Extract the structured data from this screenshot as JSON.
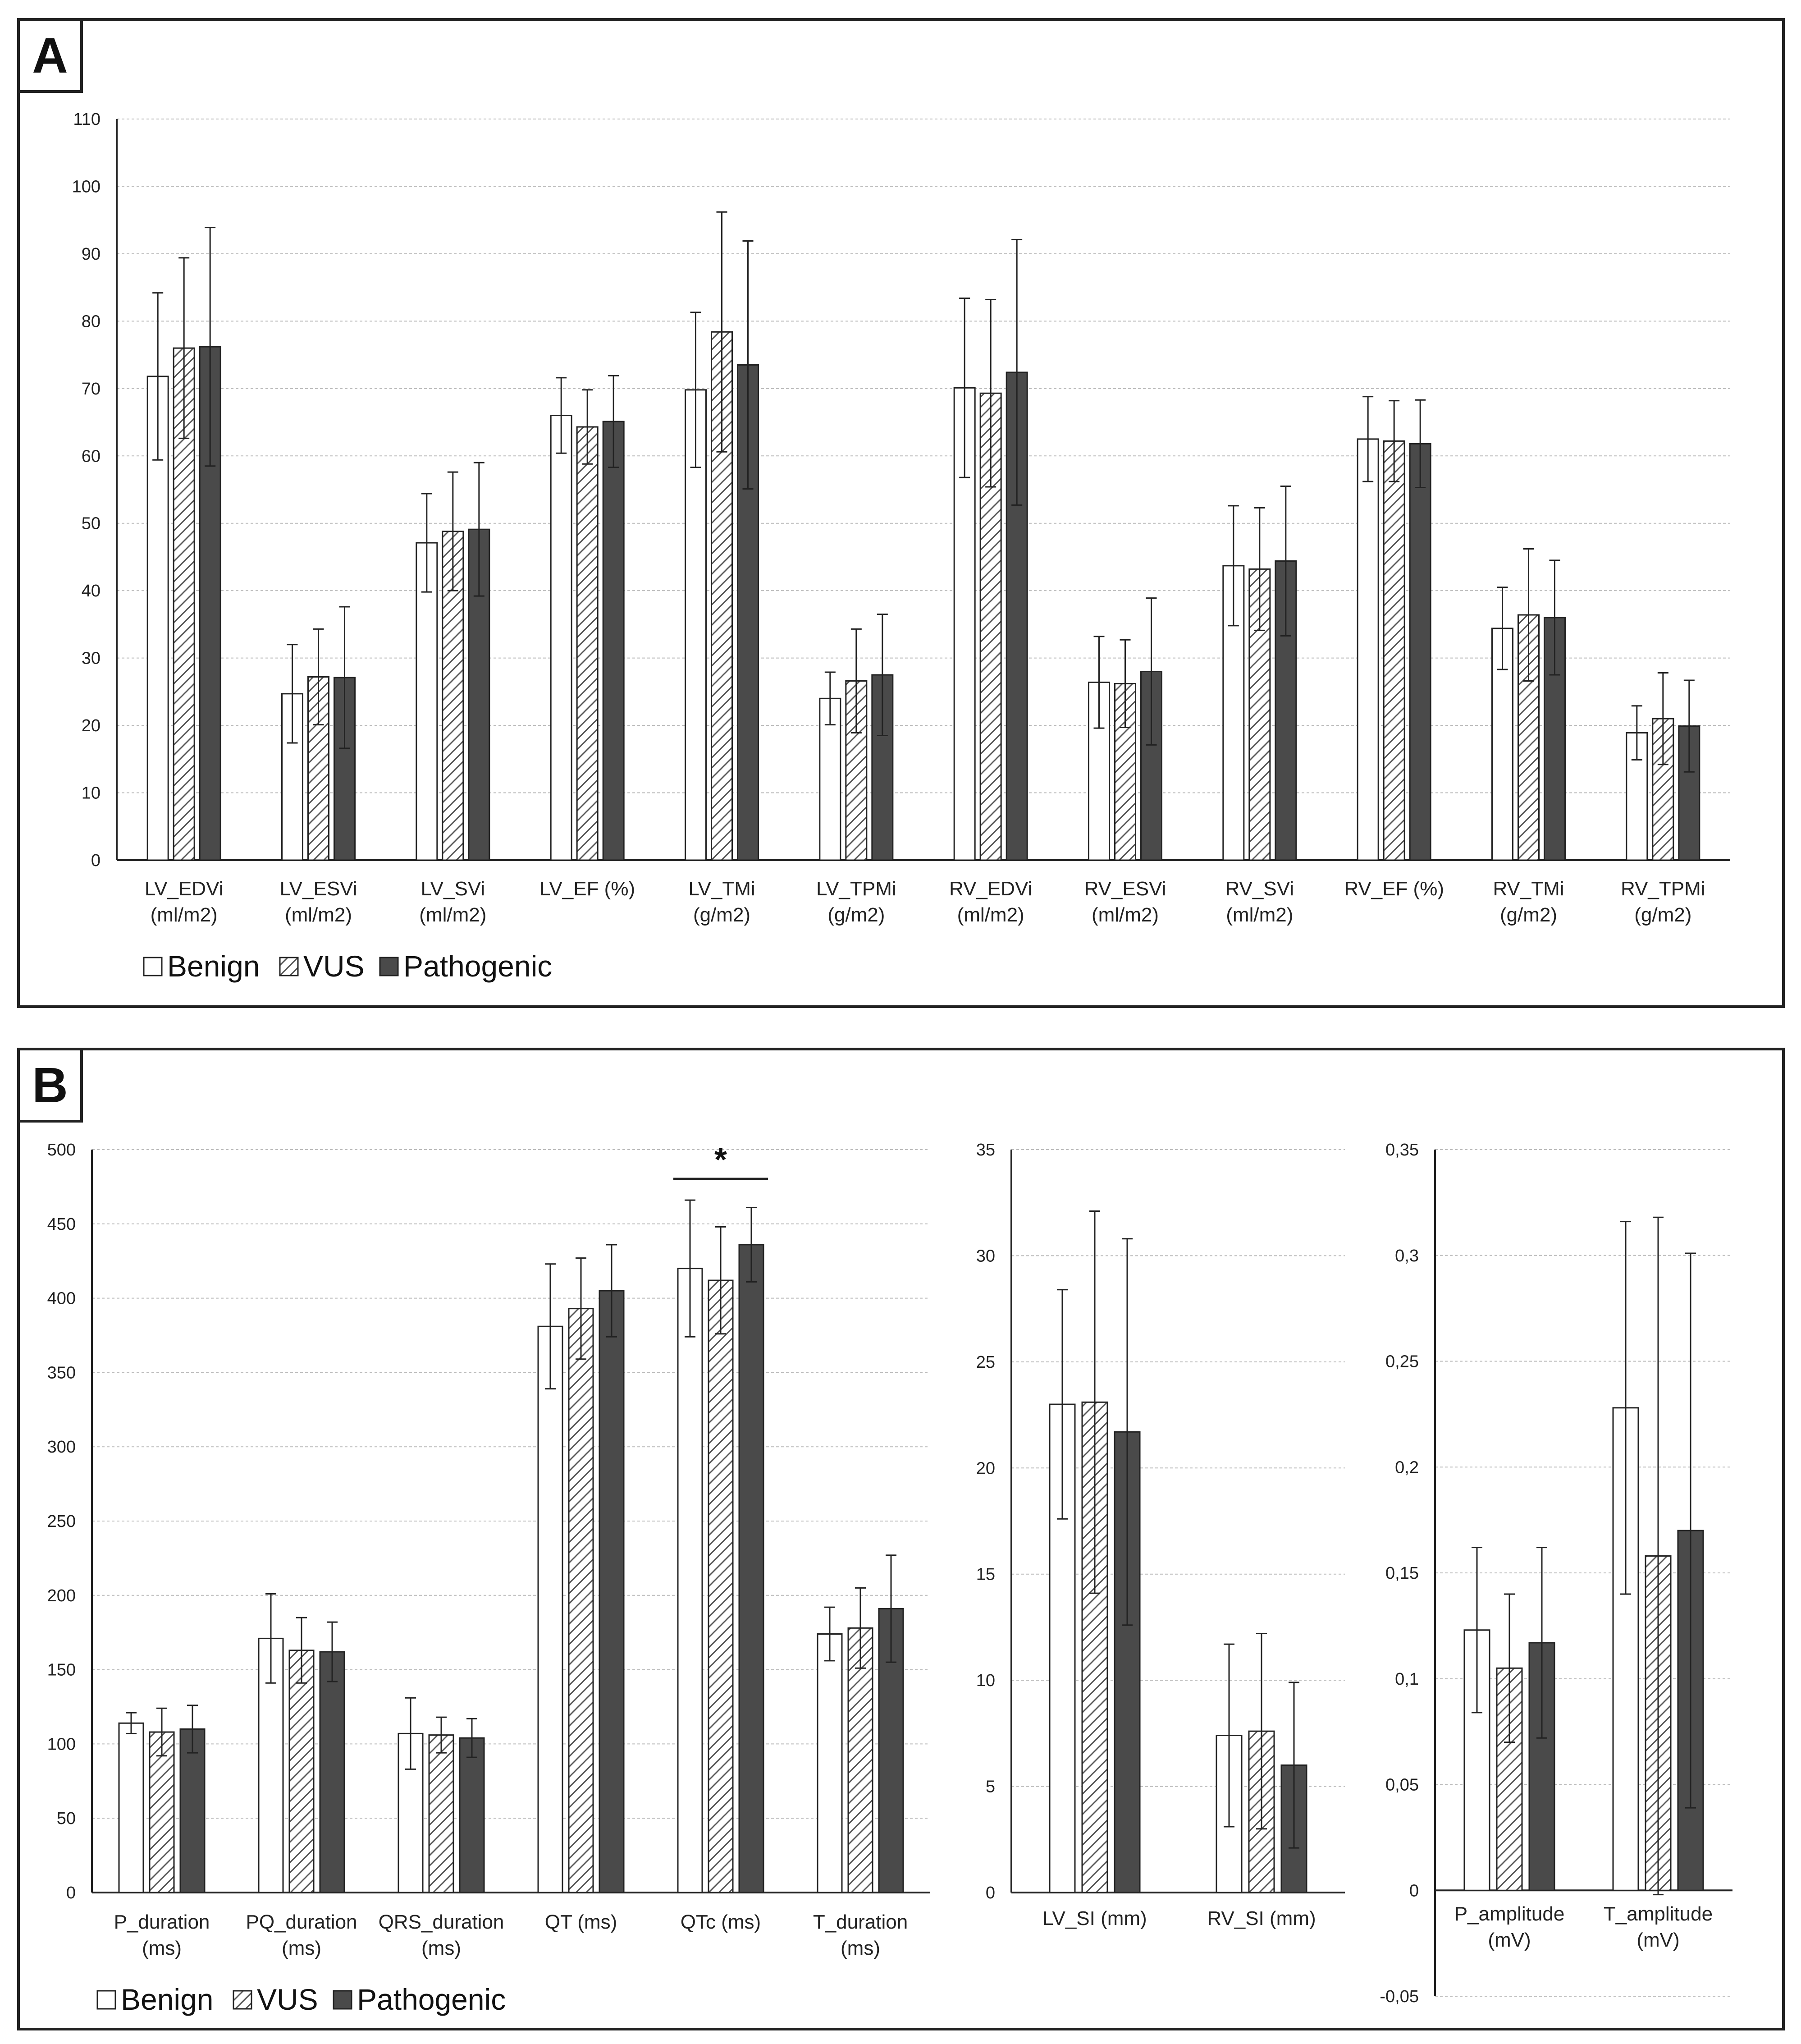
{
  "legend": {
    "benign": "Benign",
    "vus": "VUS",
    "pathogenic": "Pathogenic"
  },
  "colors": {
    "benign_fill": "#ffffff",
    "vus_fill": "hatch",
    "pathogenic_fill": "#4a4a4a",
    "bar_stroke": "#222222",
    "grid": "#bbbbbb"
  },
  "chart_data": [
    {
      "panel": "A",
      "type": "bar",
      "ylim": [
        0,
        110
      ],
      "yticks": [
        "0",
        "10",
        "20",
        "30",
        "40",
        "50",
        "60",
        "70",
        "80",
        "90",
        "100",
        "110"
      ],
      "categories": [
        [
          "LV_EDVi",
          "(ml/m2)"
        ],
        [
          "LV_ESVi",
          "(ml/m2)"
        ],
        [
          "LV_SVi",
          "(ml/m2)"
        ],
        [
          "LV_EF (%)",
          ""
        ],
        [
          "LV_TMi",
          "(g/m2)"
        ],
        [
          "LV_TPMi",
          "(g/m2)"
        ],
        [
          "RV_EDVi",
          "(ml/m2)"
        ],
        [
          "RV_ESVi",
          "(ml/m2)"
        ],
        [
          "RV_SVi",
          "(ml/m2)"
        ],
        [
          "RV_EF (%)",
          ""
        ],
        [
          "RV_TMi",
          "(g/m2)"
        ],
        [
          "RV_TPMi",
          "(g/m2)"
        ]
      ],
      "series": [
        {
          "name": "Benign",
          "values": [
            71.8,
            24.7,
            47.1,
            66.0,
            69.8,
            24.0,
            70.1,
            26.4,
            43.7,
            62.5,
            34.4,
            18.9
          ],
          "errors": [
            12.4,
            7.3,
            7.3,
            5.6,
            11.5,
            3.9,
            13.3,
            6.8,
            8.9,
            6.3,
            6.1,
            4.0
          ]
        },
        {
          "name": "VUS",
          "values": [
            76.0,
            27.2,
            48.8,
            64.3,
            78.4,
            26.6,
            69.3,
            26.2,
            43.2,
            62.2,
            36.4,
            21.0
          ],
          "errors": [
            13.4,
            7.1,
            8.8,
            5.5,
            17.8,
            7.7,
            13.9,
            6.5,
            9.1,
            6.0,
            9.8,
            6.8
          ]
        },
        {
          "name": "Pathogenic",
          "values": [
            76.2,
            27.1,
            49.1,
            65.1,
            73.5,
            27.5,
            72.4,
            28.0,
            44.4,
            61.8,
            36.0,
            19.9
          ],
          "errors": [
            17.7,
            10.5,
            9.9,
            6.8,
            18.4,
            9.0,
            19.7,
            10.9,
            11.1,
            6.5,
            8.5,
            6.8
          ]
        }
      ]
    },
    {
      "panel": "B1",
      "type": "bar",
      "ylim": [
        0,
        500
      ],
      "yticks": [
        "0",
        "50",
        "100",
        "150",
        "200",
        "250",
        "300",
        "350",
        "400",
        "450",
        "500"
      ],
      "categories": [
        [
          "P_duration",
          "(ms)"
        ],
        [
          "PQ_duration",
          "(ms)"
        ],
        [
          "QRS_duration",
          "(ms)"
        ],
        [
          "QT (ms)",
          ""
        ],
        [
          "QTc (ms)",
          ""
        ],
        [
          "T_duration",
          "(ms)"
        ]
      ],
      "series": [
        {
          "name": "Benign",
          "values": [
            114,
            171,
            107,
            381,
            420,
            174
          ],
          "errors": [
            7,
            30,
            24,
            42,
            46,
            18
          ]
        },
        {
          "name": "VUS",
          "values": [
            108,
            163,
            106,
            393,
            412,
            178
          ],
          "errors": [
            16,
            22,
            12,
            34,
            36,
            27
          ]
        },
        {
          "name": "Pathogenic",
          "values": [
            110,
            162,
            104,
            405,
            436,
            191
          ],
          "errors": [
            16,
            20,
            13,
            31,
            25,
            36
          ]
        }
      ],
      "significance": {
        "label": "*",
        "category_index": 4
      }
    },
    {
      "panel": "B2",
      "type": "bar",
      "ylim": [
        0,
        35
      ],
      "yticks": [
        "0",
        "5",
        "10",
        "15",
        "20",
        "25",
        "30",
        "35"
      ],
      "categories": [
        [
          "LV_SI (mm)",
          ""
        ],
        [
          "RV_SI (mm)",
          ""
        ]
      ],
      "series": [
        {
          "name": "Benign",
          "values": [
            23.0,
            7.4
          ],
          "errors": [
            5.4,
            4.3
          ]
        },
        {
          "name": "VUS",
          "values": [
            23.1,
            7.6
          ],
          "errors": [
            9.0,
            4.6
          ]
        },
        {
          "name": "Pathogenic",
          "values": [
            21.7,
            6.0
          ],
          "errors": [
            9.1,
            3.9
          ]
        }
      ]
    },
    {
      "panel": "B3",
      "type": "bar",
      "ylim": [
        -0.05,
        0.35
      ],
      "yticks": [
        "-0,05",
        "0",
        "0,05",
        "0,1",
        "0,15",
        "0,2",
        "0,25",
        "0,3",
        "0,35"
      ],
      "categories": [
        [
          "P_amplitude",
          "(mV)"
        ],
        [
          "T_amplitude",
          "(mV)"
        ]
      ],
      "series": [
        {
          "name": "Benign",
          "values": [
            0.123,
            0.228
          ],
          "errors": [
            0.039,
            0.088
          ]
        },
        {
          "name": "VUS",
          "values": [
            0.105,
            0.158
          ],
          "errors": [
            0.035,
            0.16
          ]
        },
        {
          "name": "Pathogenic",
          "values": [
            0.117,
            0.17
          ],
          "errors": [
            0.045,
            0.131
          ]
        }
      ]
    }
  ],
  "panels": {
    "a_label": "A",
    "b_label": "B"
  }
}
